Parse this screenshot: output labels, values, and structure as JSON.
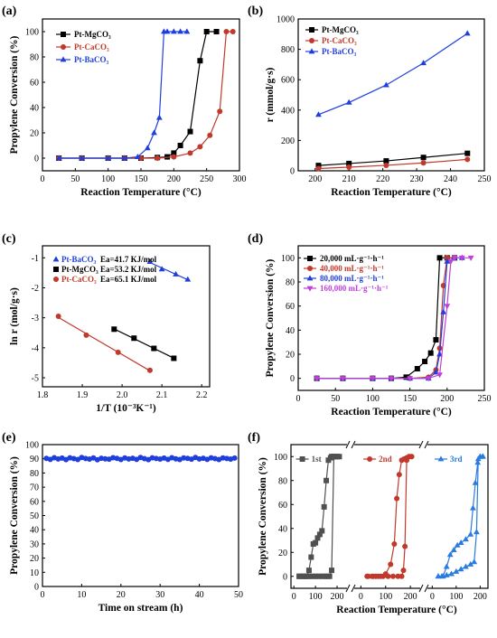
{
  "chart_data": [
    {
      "id": "a",
      "panel_label": "(a)",
      "type": "line",
      "xlabel": "Reaction Temperature (°C)",
      "ylabel": "Propylene Conversion (%)",
      "xlim": [
        0,
        300
      ],
      "ylim": [
        -10,
        110
      ],
      "xticks": [
        0,
        50,
        100,
        150,
        200,
        250,
        300
      ],
      "yticks": [
        0,
        20,
        40,
        60,
        80,
        100
      ],
      "legend_position": "top-left",
      "series": [
        {
          "name": "Pt-MgCO₃",
          "color": "#000000",
          "marker": "square",
          "x": [
            25,
            60,
            100,
            125,
            150,
            175,
            190,
            200,
            210,
            225,
            240,
            250,
            265
          ],
          "y": [
            0,
            0,
            0,
            0,
            0,
            0.5,
            1,
            4,
            10,
            21,
            77,
            100,
            100
          ]
        },
        {
          "name": "Pt-CaCO₃",
          "color": "#c0392b",
          "marker": "circle",
          "x": [
            25,
            60,
            100,
            125,
            150,
            175,
            200,
            225,
            240,
            255,
            270,
            280,
            290
          ],
          "y": [
            0,
            0,
            0,
            0,
            0,
            0,
            1,
            4,
            9,
            18,
            37,
            100,
            100
          ]
        },
        {
          "name": "Pt-BaCO₃",
          "color": "#1f3fdd",
          "marker": "triangle",
          "x": [
            25,
            60,
            100,
            125,
            145,
            160,
            170,
            178,
            185,
            190,
            200,
            210,
            220
          ],
          "y": [
            0,
            0,
            0,
            0,
            1,
            8,
            20,
            32,
            100,
            100,
            100,
            100,
            100
          ]
        }
      ]
    },
    {
      "id": "b",
      "panel_label": "(b)",
      "type": "line",
      "xlabel": "Reaction Temperature (°C)",
      "ylabel": "r (mmol/g·s)",
      "xlim": [
        195,
        250
      ],
      "ylim": [
        0,
        1000
      ],
      "xticks": [
        200,
        210,
        220,
        230,
        240,
        250
      ],
      "yticks": [
        0,
        200,
        400,
        600,
        800,
        1000
      ],
      "legend_position": "top-left",
      "series": [
        {
          "name": "Pt-MgCO₃",
          "color": "#000000",
          "marker": "square",
          "x": [
            201,
            210,
            221,
            232,
            245
          ],
          "y": [
            35,
            48,
            65,
            88,
            115
          ]
        },
        {
          "name": "Pt-CaCO₃",
          "color": "#c0392b",
          "marker": "circle",
          "x": [
            201,
            210,
            221,
            232,
            245
          ],
          "y": [
            15,
            24,
            36,
            52,
            75
          ]
        },
        {
          "name": "Pt-BaCO₃",
          "color": "#1f3fdd",
          "marker": "triangle",
          "x": [
            201,
            210,
            221,
            232,
            245
          ],
          "y": [
            370,
            450,
            565,
            710,
            905
          ]
        }
      ]
    },
    {
      "id": "c",
      "panel_label": "(c)",
      "type": "scatter",
      "xlabel": "1/T (10⁻³K⁻¹)",
      "ylabel": "ln r (mol/g·s)",
      "xlim": [
        1.8,
        2.22
      ],
      "ylim": [
        -5.3,
        -0.6
      ],
      "xticks": [
        1.8,
        1.9,
        2.0,
        2.1,
        2.2
      ],
      "yticks": [
        -5,
        -4,
        -3,
        -2,
        -1
      ],
      "legend_position": "top-left",
      "series": [
        {
          "name": "Pt-BaCO₃",
          "annotation": "Ea=41.7 KJ/mol",
          "color": "#1f3fdd",
          "marker": "triangle",
          "x": [
            2.07,
            2.1,
            2.135,
            2.165
          ],
          "y": [
            -1.13,
            -1.38,
            -1.55,
            -1.72
          ]
        },
        {
          "name": "Pt-MgCO₃",
          "annotation": "Ea=53.2 KJ/mol",
          "color": "#000000",
          "marker": "square",
          "x": [
            1.98,
            2.03,
            2.08,
            2.13
          ],
          "y": [
            -3.38,
            -3.68,
            -4.02,
            -4.35
          ]
        },
        {
          "name": "Pt-CaCO₃",
          "annotation": "Ea=65.1 KJ/mol",
          "color": "#c0392b",
          "marker": "circle",
          "x": [
            1.84,
            1.91,
            1.99,
            2.07
          ],
          "y": [
            -2.95,
            -3.58,
            -4.15,
            -4.75
          ]
        }
      ]
    },
    {
      "id": "d",
      "panel_label": "(d)",
      "type": "line",
      "xlabel": "Reaction Temperature (°C)",
      "ylabel": "Propylene Conversion (%)",
      "xlim": [
        0,
        250
      ],
      "ylim": [
        -10,
        110
      ],
      "xticks": [
        0,
        50,
        100,
        150,
        200,
        250
      ],
      "yticks": [
        0,
        20,
        40,
        60,
        80,
        100
      ],
      "legend_position": "top-left",
      "series": [
        {
          "name": "20,000 mL·g⁻¹·h⁻¹",
          "color": "#000000",
          "marker": "square",
          "x": [
            25,
            60,
            100,
            125,
            145,
            160,
            170,
            178,
            185,
            190,
            200,
            210
          ],
          "y": [
            0,
            0,
            0,
            0,
            1,
            8,
            14,
            21,
            32,
            100,
            100,
            100
          ]
        },
        {
          "name": "40,000 mL·g⁻¹·h⁻¹",
          "color": "#c0392b",
          "marker": "circle",
          "x": [
            25,
            60,
            100,
            125,
            150,
            175,
            185,
            190,
            195,
            200,
            210
          ],
          "y": [
            0,
            0,
            0,
            0,
            0,
            1,
            7,
            25,
            77,
            100,
            100
          ]
        },
        {
          "name": "80,000 mL·g⁻¹·h⁻¹",
          "color": "#1f3fdd",
          "marker": "triangle",
          "x": [
            25,
            60,
            100,
            125,
            150,
            175,
            185,
            190,
            195,
            200,
            210,
            220
          ],
          "y": [
            0,
            0,
            0,
            0,
            0,
            0,
            5,
            20,
            55,
            97,
            100,
            100
          ]
        },
        {
          "name": "160,000 mL·g⁻¹·h⁻¹",
          "color": "#c040d8",
          "marker": "triangle-down",
          "x": [
            25,
            60,
            100,
            125,
            150,
            175,
            190,
            200,
            205,
            210,
            220,
            232
          ],
          "y": [
            0,
            0,
            0,
            0,
            0,
            0,
            3,
            60,
            97,
            100,
            100,
            100
          ]
        }
      ]
    },
    {
      "id": "e",
      "panel_label": "(e)",
      "type": "scatter",
      "xlabel": "Time on stream (h)",
      "ylabel": "Propylene Conversion (%)",
      "xlim": [
        0,
        50
      ],
      "ylim": [
        0,
        100
      ],
      "xticks": [
        0,
        10,
        20,
        30,
        40,
        50
      ],
      "yticks": [
        0,
        10,
        20,
        30,
        40,
        50,
        60,
        70,
        80,
        90,
        100
      ],
      "series": [
        {
          "name": "",
          "color": "#1f3fdd",
          "marker": "circle",
          "x": [
            1,
            2,
            3,
            4,
            5,
            6,
            7,
            8,
            9,
            10,
            11,
            12,
            13,
            14,
            15,
            16,
            17,
            18,
            19,
            20,
            21,
            22,
            23,
            24,
            25,
            26,
            27,
            28,
            29,
            30,
            31,
            32,
            33,
            34,
            35,
            36,
            37,
            38,
            39,
            40,
            41,
            42,
            43,
            44,
            45,
            46,
            47,
            48,
            49
          ],
          "y": [
            90.3,
            89.6,
            90.8,
            89.9,
            90.5,
            89.4,
            90.7,
            90.1,
            89.5,
            90.9,
            90.2,
            89.8,
            90.6,
            89.3,
            90.4,
            90.0,
            89.7,
            90.8,
            90.3,
            89.5,
            90.6,
            89.9,
            90.4,
            89.6,
            90.9,
            90.1,
            89.4,
            90.7,
            90.2,
            89.8,
            90.5,
            89.6,
            90.8,
            90.0,
            89.5,
            90.6,
            90.3,
            89.7,
            90.9,
            89.9,
            90.4,
            89.6,
            90.7,
            90.1,
            89.5,
            90.6,
            90.2,
            89.8,
            90.5
          ]
        }
      ]
    },
    {
      "id": "f",
      "panel_label": "(f)",
      "type": "line",
      "xlabel": "Reaction Temperature (°C)",
      "ylabel": "Propylene Conversion (%)",
      "ylim": [
        -10,
        110
      ],
      "yticks": [
        0,
        20,
        40,
        60,
        80,
        100
      ],
      "segment_xticks": [
        [
          0,
          100,
          200
        ],
        [
          0,
          100,
          200
        ],
        [
          0,
          100,
          200
        ]
      ],
      "legend_position": "top-left",
      "series": [
        {
          "name": "1st",
          "color": "#505050",
          "marker": "square",
          "segment": 0,
          "x": [
            25,
            45,
            60,
            70,
            80,
            90,
            100,
            110,
            120,
            130,
            140,
            150,
            160,
            170,
            175,
            180,
            185,
            190,
            200,
            210,
            200,
            185,
            175,
            165,
            155,
            145,
            130,
            115,
            100,
            85,
            70,
            55,
            40,
            25
          ],
          "y": [
            0,
            0,
            0,
            5,
            16,
            27,
            28,
            32,
            35,
            38,
            58,
            80,
            97,
            99,
            100,
            100,
            100,
            100,
            100,
            100,
            100,
            100,
            5,
            0,
            0,
            0,
            0,
            0,
            0,
            0,
            0,
            0,
            0,
            0
          ]
        },
        {
          "name": "2nd",
          "color": "#c0392b",
          "marker": "circle",
          "segment": 1,
          "x": [
            25,
            45,
            60,
            80,
            100,
            120,
            135,
            145,
            155,
            165,
            175,
            185,
            195,
            205,
            205,
            195,
            185,
            178,
            172,
            165,
            150,
            130,
            110,
            90,
            70,
            50,
            30
          ],
          "y": [
            0,
            0,
            0,
            0,
            2,
            10,
            27,
            65,
            85,
            97,
            98,
            99,
            100,
            100,
            100,
            100,
            97,
            25,
            5,
            0,
            0,
            0,
            0,
            0,
            0,
            0,
            0
          ]
        },
        {
          "name": "3rd",
          "color": "#2a7be0",
          "marker": "triangle",
          "segment": 2,
          "x": [
            25,
            45,
            60,
            75,
            90,
            105,
            120,
            140,
            160,
            170,
            180,
            190,
            200,
            210,
            212,
            200,
            192,
            185,
            175,
            160,
            140,
            120,
            100,
            80,
            60,
            40,
            25
          ],
          "y": [
            0,
            0,
            8,
            18,
            22,
            26,
            28,
            31,
            35,
            57,
            78,
            95,
            100,
            100,
            100,
            100,
            98,
            37,
            12,
            10,
            8,
            6,
            4,
            2,
            1,
            0,
            0
          ]
        }
      ]
    }
  ]
}
